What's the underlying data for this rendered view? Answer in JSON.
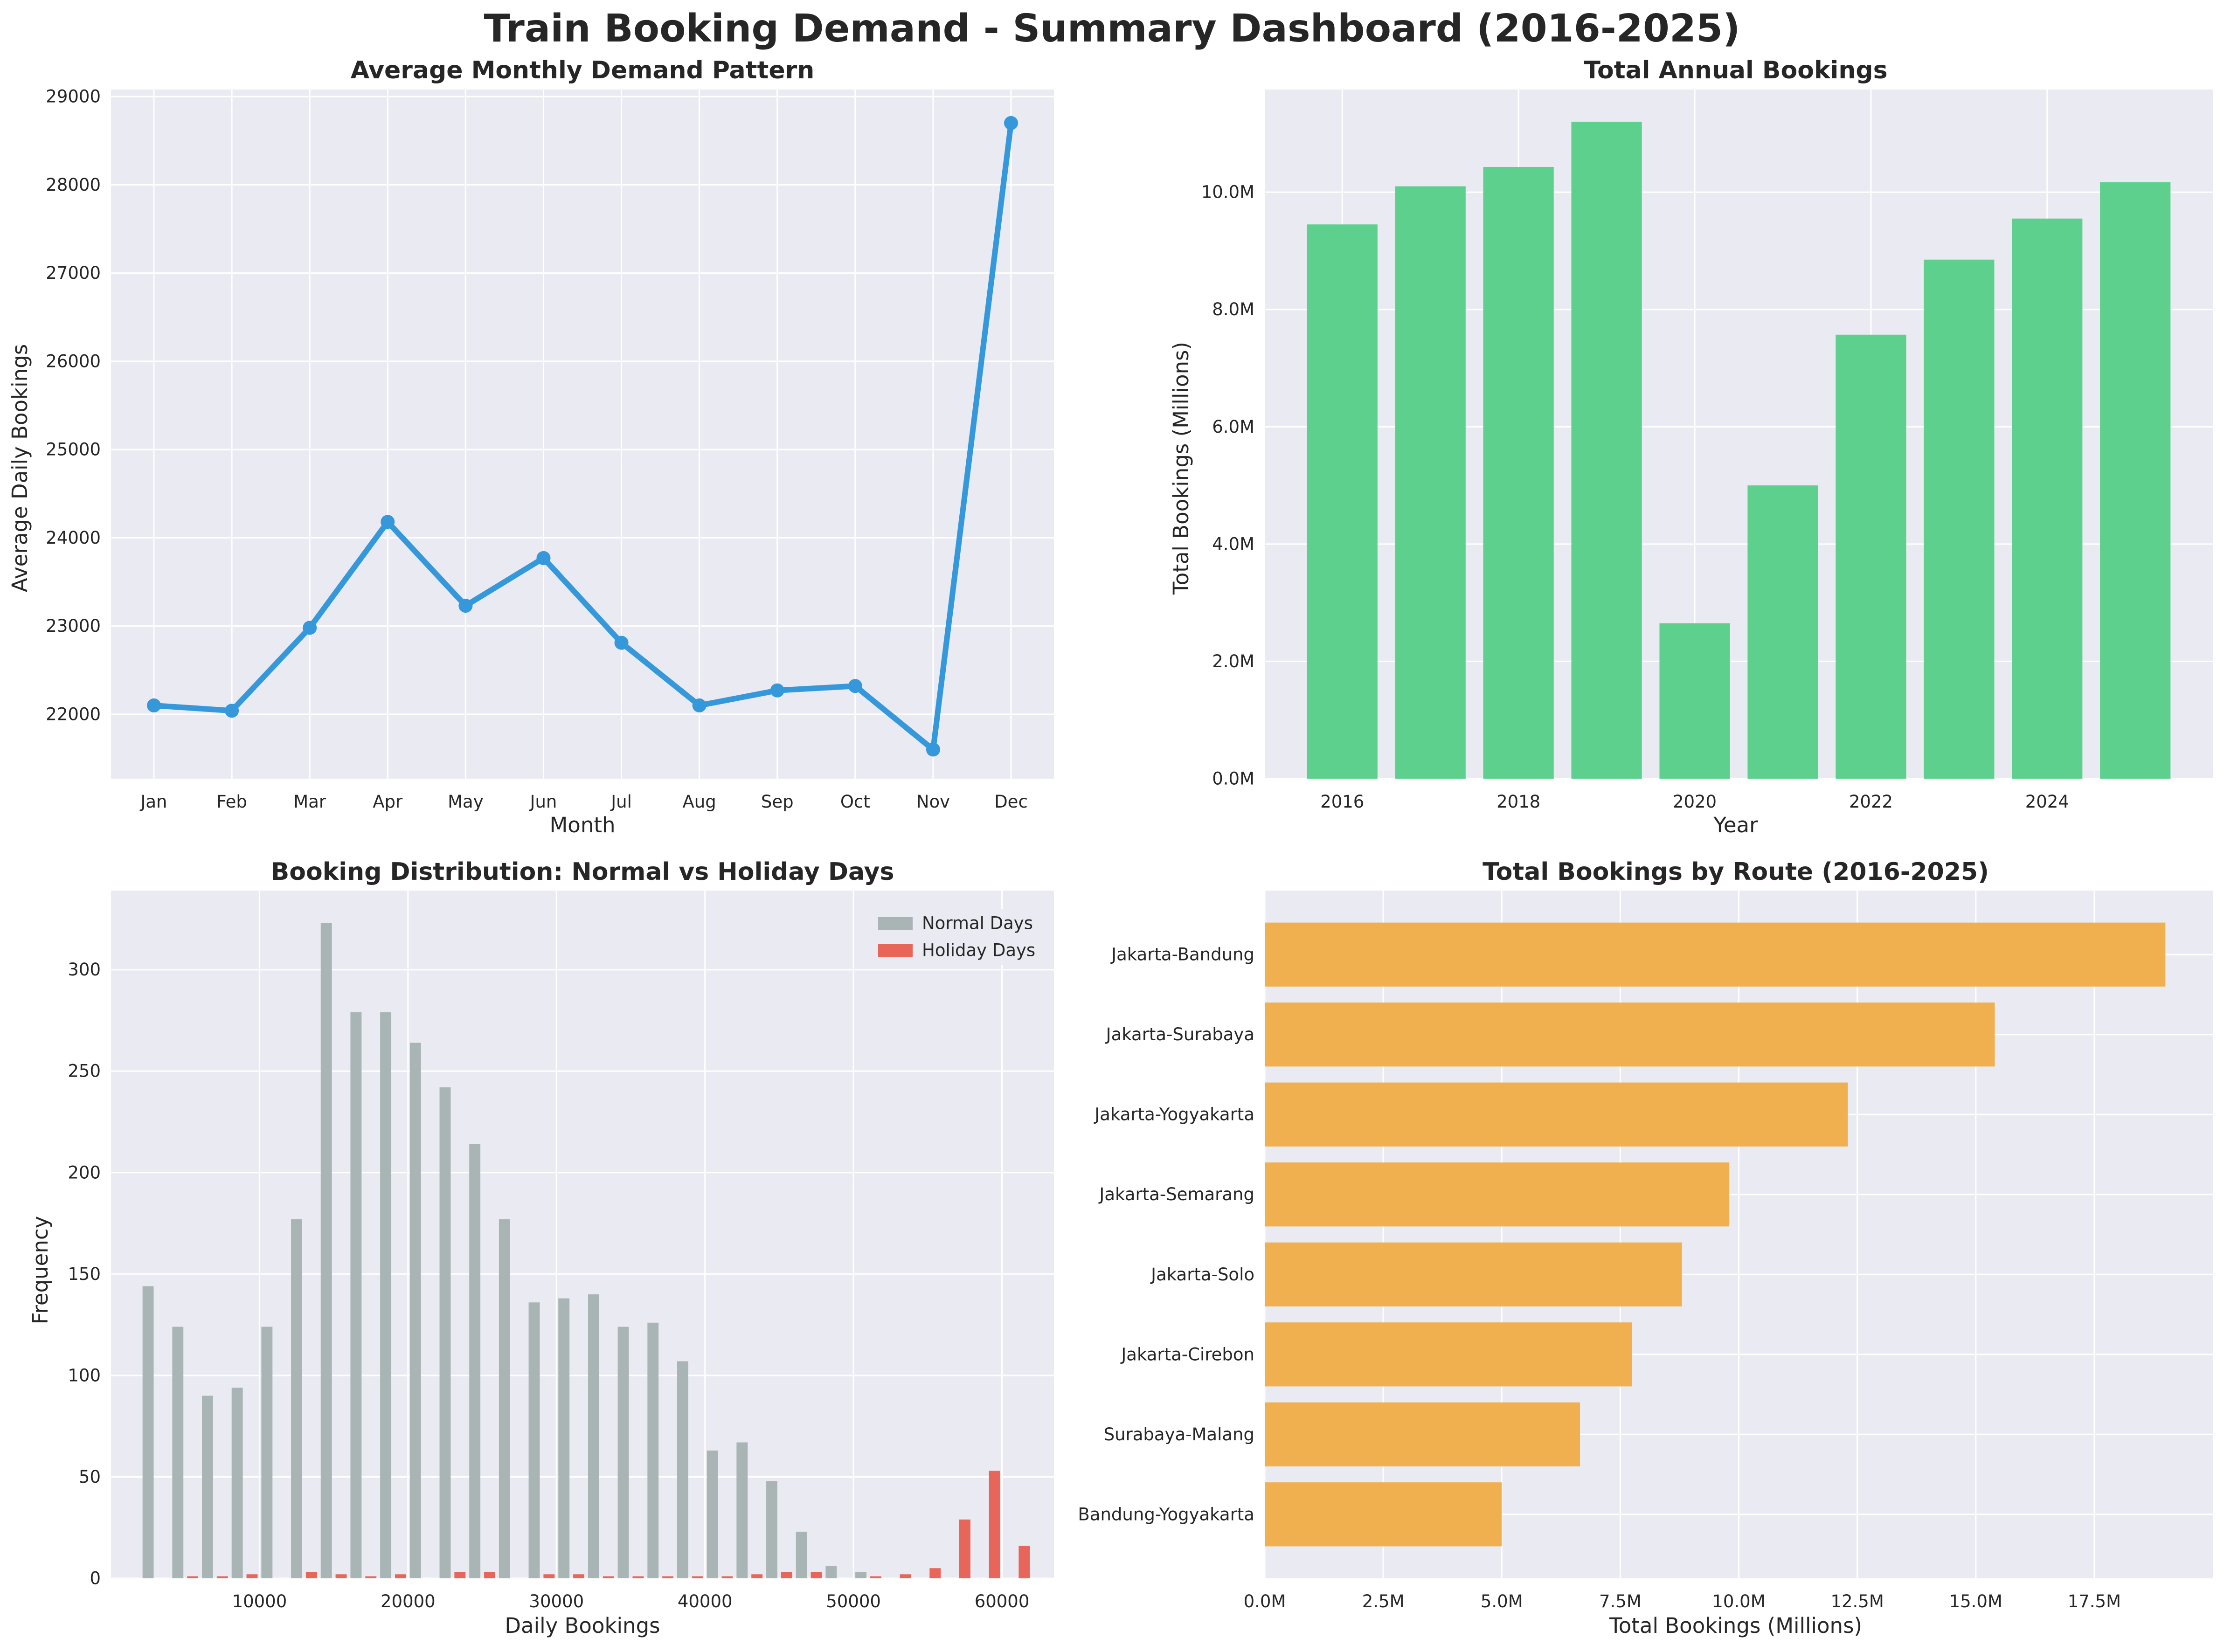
{
  "title": "Train Booking Demand - Summary Dashboard (2016-2025)",
  "colors": {
    "panel_bg": "#eaeaf2",
    "grid": "#ffffff",
    "line": "#3498db",
    "annual_bar": "#5cd08c",
    "normal_days": "#a9b5b5",
    "holiday_days": "#e8655a",
    "route_bar": "#f0b04f"
  },
  "chart_data": [
    {
      "type": "line",
      "title": "Average Monthly Demand Pattern",
      "xlabel": "Month",
      "ylabel": "Average Daily Bookings",
      "categories": [
        "Jan",
        "Feb",
        "Mar",
        "Apr",
        "May",
        "Jun",
        "Jul",
        "Aug",
        "Sep",
        "Oct",
        "Nov",
        "Dec"
      ],
      "values": [
        22100,
        22040,
        22980,
        24180,
        23230,
        23770,
        22810,
        22100,
        22270,
        22320,
        21600,
        28700
      ],
      "ylim": [
        21270,
        29080
      ],
      "yticks": [
        22000,
        23000,
        24000,
        25000,
        26000,
        27000,
        28000,
        29000
      ],
      "grid": true
    },
    {
      "type": "bar",
      "title": "Total Annual Bookings",
      "xlabel": "Year",
      "ylabel": "Total Bookings (Millions)",
      "x": [
        2016,
        2017,
        2018,
        2019,
        2020,
        2021,
        2022,
        2023,
        2024,
        2025
      ],
      "values": [
        9.45,
        10.1,
        10.43,
        11.2,
        2.65,
        5.0,
        7.57,
        8.85,
        9.55,
        10.17
      ],
      "xticks": [
        2016,
        2018,
        2020,
        2022,
        2024
      ],
      "ylim": [
        0,
        11.75
      ],
      "yticks": [
        0,
        2,
        4,
        6,
        8,
        10
      ],
      "ytick_labels": [
        "0.0M",
        "2.0M",
        "4.0M",
        "6.0M",
        "8.0M",
        "10.0M"
      ],
      "grid": true
    },
    {
      "type": "bar",
      "title": "Booking Distribution: Normal vs Holiday Days",
      "xlabel": "Daily Bookings",
      "ylabel": "Frequency",
      "bins": [
        3000,
        5000,
        7000,
        9000,
        11000,
        13000,
        15000,
        17000,
        19000,
        21000,
        23000,
        25000,
        27000,
        29000,
        31000,
        33000,
        35000,
        37000,
        39000,
        41000,
        43000,
        45000,
        47000,
        49000,
        51000,
        53000,
        55000,
        57000,
        59000,
        61000
      ],
      "series": [
        {
          "name": "Normal Days",
          "values": [
            144,
            124,
            90,
            94,
            124,
            177,
            323,
            279,
            279,
            264,
            242,
            214,
            177,
            136,
            138,
            140,
            124,
            126,
            107,
            63,
            67,
            48,
            23,
            6,
            3,
            0,
            0,
            0,
            0,
            0
          ]
        },
        {
          "name": "Holiday Days",
          "values": [
            0,
            1,
            1,
            2,
            0,
            3,
            2,
            1,
            2,
            0,
            3,
            3,
            0,
            2,
            2,
            1,
            1,
            1,
            1,
            1,
            2,
            3,
            3,
            0,
            1,
            2,
            5,
            29,
            53,
            16
          ]
        }
      ],
      "xlim": [
        0,
        63500
      ],
      "xticks": [
        10000,
        20000,
        30000,
        40000,
        50000,
        60000
      ],
      "ylim": [
        0,
        339
      ],
      "yticks": [
        0,
        50,
        100,
        150,
        200,
        250,
        300
      ],
      "legend": "top-right",
      "grid": true
    },
    {
      "type": "bar",
      "orientation": "horizontal",
      "title": "Total Bookings by Route (2016-2025)",
      "xlabel": "Total Bookings (Millions)",
      "ylabel": "",
      "categories": [
        "Jakarta-Bandung",
        "Jakarta-Surabaya",
        "Jakarta-Yogyakarta",
        "Jakarta-Semarang",
        "Jakarta-Solo",
        "Jakarta-Cirebon",
        "Surabaya-Malang",
        "Bandung-Yogyakarta"
      ],
      "values": [
        19.0,
        15.4,
        12.3,
        9.8,
        8.8,
        7.75,
        6.65,
        5.0
      ],
      "xlim": [
        0,
        20.0
      ],
      "xticks": [
        0,
        2.5,
        5.0,
        7.5,
        10.0,
        12.5,
        15.0,
        17.5
      ],
      "xtick_labels": [
        "0.0M",
        "2.5M",
        "5.0M",
        "7.5M",
        "10.0M",
        "12.5M",
        "15.0M",
        "17.5M"
      ],
      "grid": true
    }
  ]
}
